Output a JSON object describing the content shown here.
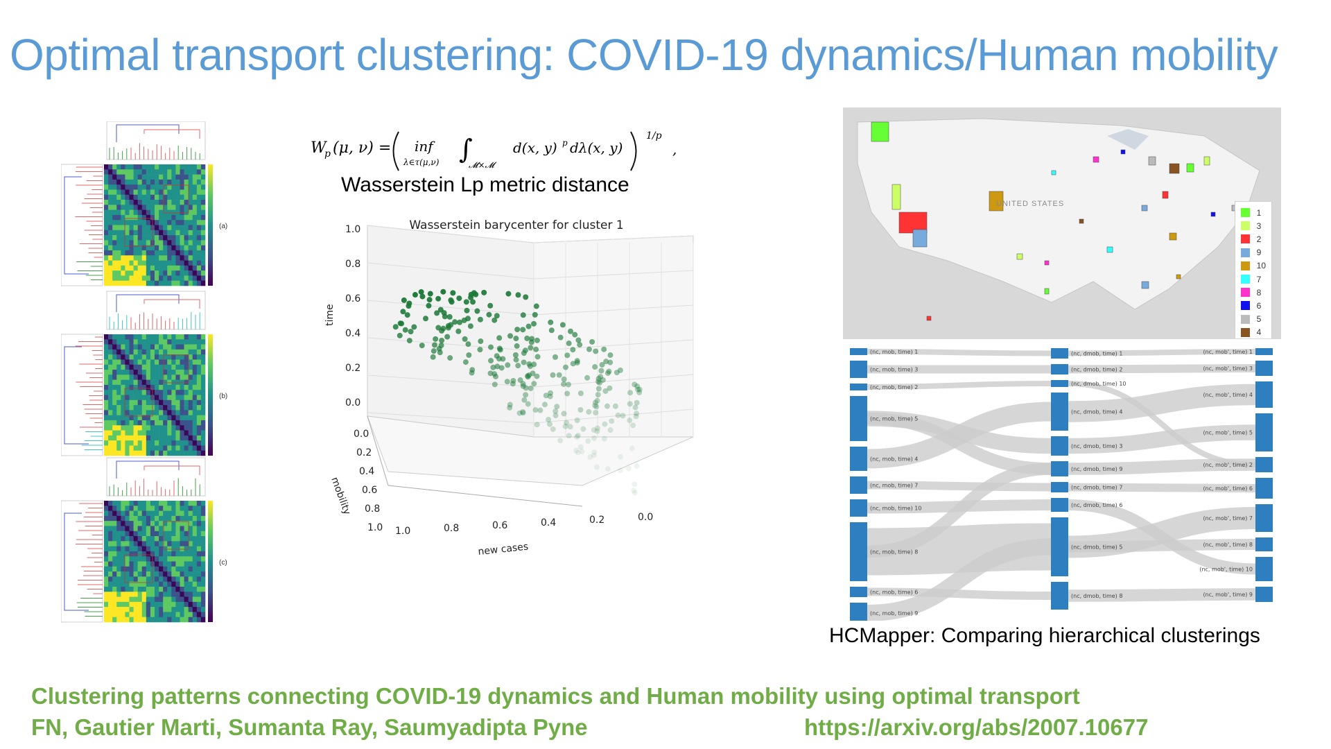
{
  "slide": {
    "title": "Optimal transport clustering: COVID-19 dynamics/Human mobility"
  },
  "heatmaps": {
    "labels": [
      "(a)",
      "(b)",
      "(c)"
    ],
    "colormap": [
      "#440154",
      "#3b528b",
      "#21918c",
      "#5ec962",
      "#fde725"
    ]
  },
  "formula": {
    "lhs": "W",
    "lhs_sub": "p",
    "lhs_args": "(μ, ν) =",
    "inf": "inf",
    "inf_sub": "λ∈τ(μ,ν)",
    "int_sub": "𝓜×𝓜",
    "integrand": "d(x, y)",
    "integrand_sup": "p",
    "measure": "dλ(x, y)",
    "exponent": "1/p",
    "trailing": ","
  },
  "metric_caption": "Wasserstein Lp metric distance",
  "scatter3d": {
    "title": "Wasserstein barycenter for cluster 1",
    "z_label": "time",
    "x_label": "new cases",
    "y_label": "mobility",
    "z_ticks": [
      "1.0",
      "0.8",
      "0.6",
      "0.4",
      "0.2",
      "0.0"
    ],
    "x_ticks": [
      "1.0",
      "0.8",
      "0.6",
      "0.4",
      "0.2",
      "0.0"
    ],
    "y_ticks": [
      "0.0",
      "0.2",
      "0.4",
      "0.6",
      "0.8",
      "1.0"
    ],
    "point_color": "#1b7837"
  },
  "map": {
    "country_label": "UNITED STATES",
    "legend": [
      {
        "label": "1",
        "color": "#66ff33"
      },
      {
        "label": "3",
        "color": "#ccff66"
      },
      {
        "label": "2",
        "color": "#ff3333"
      },
      {
        "label": "9",
        "color": "#77aadd"
      },
      {
        "label": "10",
        "color": "#cc9911"
      },
      {
        "label": "7",
        "color": "#33ffff"
      },
      {
        "label": "8",
        "color": "#ff33cc"
      },
      {
        "label": "6",
        "color": "#1111ee"
      },
      {
        "label": "5",
        "color": "#bbbbbb"
      },
      {
        "label": "4",
        "color": "#885522"
      }
    ]
  },
  "sankey": {
    "node_color": "#2e7fc0",
    "link_color": "#cccccc",
    "left": [
      "(nc, mob, time) 1",
      "(nc, mob, time) 3",
      "(nc, mob, time) 2",
      "(nc, mob, time) 5",
      "(nc, mob, time) 4",
      "(nc, mob, time) 7",
      "(nc, mob, time) 10",
      "(nc, mob, time) 8",
      "(nc, mob, time) 6",
      "(nc, mob, time) 9"
    ],
    "middle": [
      "(nc, dmob, time) 1",
      "(nc, dmob, time) 2",
      "(nc, dmob, time) 10",
      "(nc, dmob, time) 4",
      "(nc, dmob, time) 3",
      "(nc, dmob, time) 9",
      "(nc, dmob, time) 7",
      "(nc, dmob, time) 6",
      "(nc, dmob, time) 5",
      "(nc, dmob, time) 8"
    ],
    "right": [
      "(nc, mob', time) 1",
      "(nc, mob', time) 3",
      "(nc, mob', time) 4",
      "(nc, mob', time) 5",
      "(nc, mob', time) 2",
      "(nc, mob', time) 6",
      "(nc, mob', time) 7",
      "(nc, mob', time) 8",
      "(nc, mob', time) 10",
      "(nc, mob', time) 9"
    ]
  },
  "hc_caption": "HCMapper: Comparing hierarchical clusterings",
  "reference": {
    "line1": "Clustering patterns connecting COVID-19 dynamics and Human mobility using optimal transport",
    "authors": "FN, Gautier Marti, Sumanta Ray, Saumyadipta Pyne",
    "url": "https://arxiv.org/abs/2007.10677"
  }
}
